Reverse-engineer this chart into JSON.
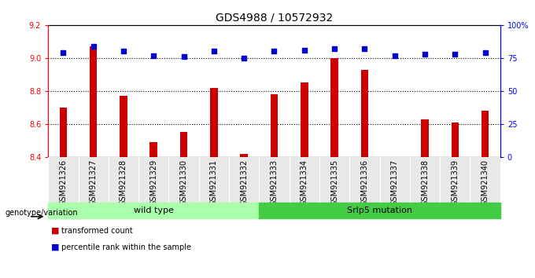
{
  "title": "GDS4988 / 10572932",
  "samples": [
    "GSM921326",
    "GSM921327",
    "GSM921328",
    "GSM921329",
    "GSM921330",
    "GSM921331",
    "GSM921332",
    "GSM921333",
    "GSM921334",
    "GSM921335",
    "GSM921336",
    "GSM921337",
    "GSM921338",
    "GSM921339",
    "GSM921340"
  ],
  "transformed_counts": [
    8.7,
    9.07,
    8.77,
    8.49,
    8.55,
    8.82,
    8.42,
    8.78,
    8.85,
    9.0,
    8.93,
    8.4,
    8.63,
    8.61,
    8.68
  ],
  "percentile_ranks": [
    79,
    84,
    80,
    77,
    76,
    80,
    75,
    80,
    81,
    82,
    82,
    77,
    78,
    78,
    79
  ],
  "ylim_left": [
    8.4,
    9.2
  ],
  "ylim_right": [
    0,
    100
  ],
  "yticks_left": [
    8.4,
    8.6,
    8.8,
    9.0,
    9.2
  ],
  "yticks_right": [
    0,
    25,
    50,
    75,
    100
  ],
  "yticklabels_right": [
    "0",
    "25",
    "50",
    "75",
    "100%"
  ],
  "bar_color": "#cc0000",
  "dot_color": "#0000cc",
  "wild_type_label": "wild type",
  "srfp5_label": "Srlp5 mutation",
  "genotype_label": "genotype/variation",
  "legend_bar_label": "transformed count",
  "legend_dot_label": "percentile rank within the sample",
  "plot_bg": "#e8e8e8",
  "group_bg_wt": "#aaffaa",
  "group_bg_mut": "#44cc44",
  "title_fontsize": 10,
  "tick_fontsize": 7,
  "label_fontsize": 8,
  "bar_width": 0.25
}
